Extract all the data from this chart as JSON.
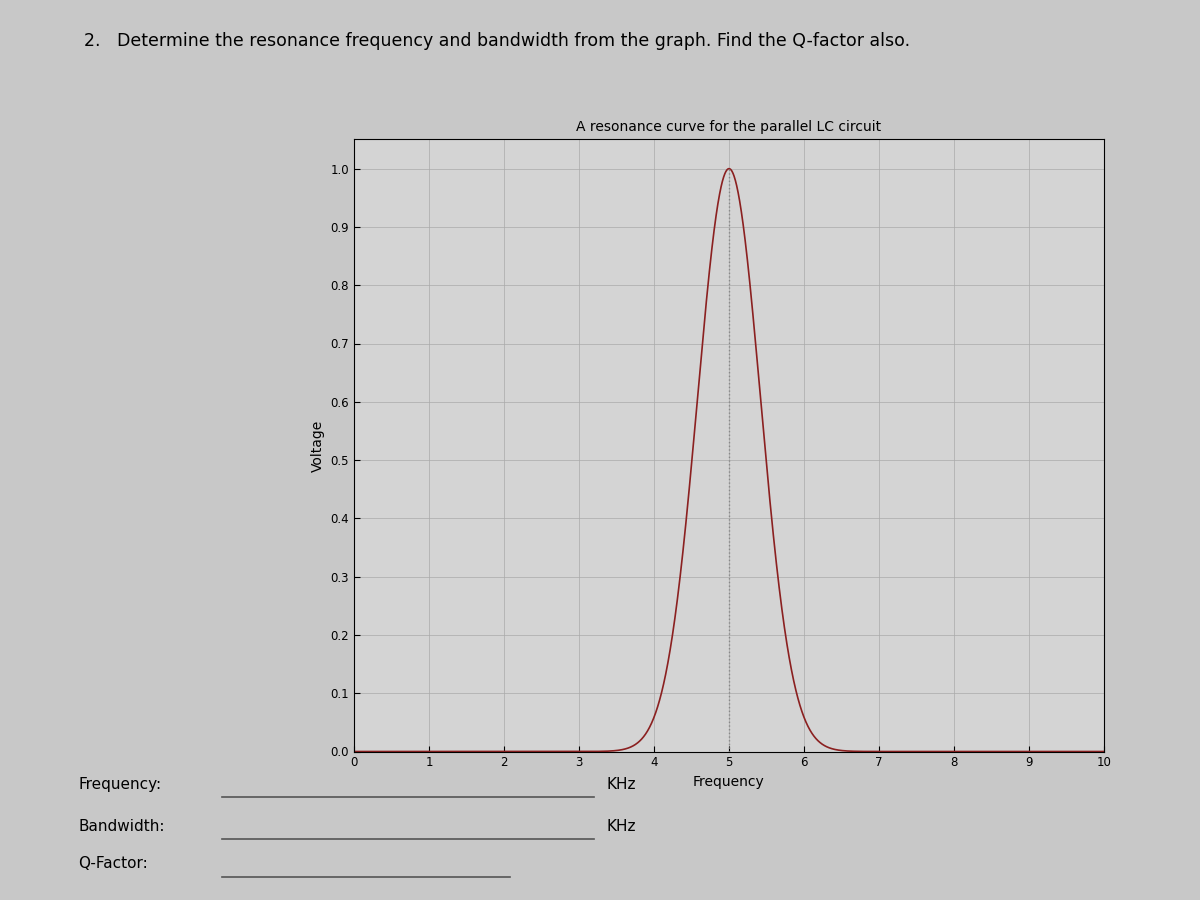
{
  "title_main": "2.   Determine the resonance frequency and bandwidth from the graph. Find the Q-factor also.",
  "plot_title": "A resonance curve for the parallel LC circuit",
  "xlabel": "Frequency",
  "ylabel": "Voltage",
  "xlim": [
    0,
    10
  ],
  "ylim": [
    0,
    1.05
  ],
  "xticks": [
    0,
    1,
    2,
    3,
    4,
    5,
    6,
    7,
    8,
    9,
    10
  ],
  "yticks": [
    0,
    0.1,
    0.2,
    0.3,
    0.4,
    0.5,
    0.6,
    0.7,
    0.8,
    0.9,
    1
  ],
  "resonance_freq": 5,
  "curve_color": "#8B2020",
  "dotted_line_color": "#888888",
  "bg_color": "#C8C8C8",
  "plot_bg_color": "#D4D4D4",
  "label_frequency": "Frequency:",
  "label_bandwidth": "Bandwidth:",
  "label_qfactor": "Q-Factor:",
  "unit_freq": "KHz",
  "unit_bw": "KHz",
  "sigma": 0.42
}
